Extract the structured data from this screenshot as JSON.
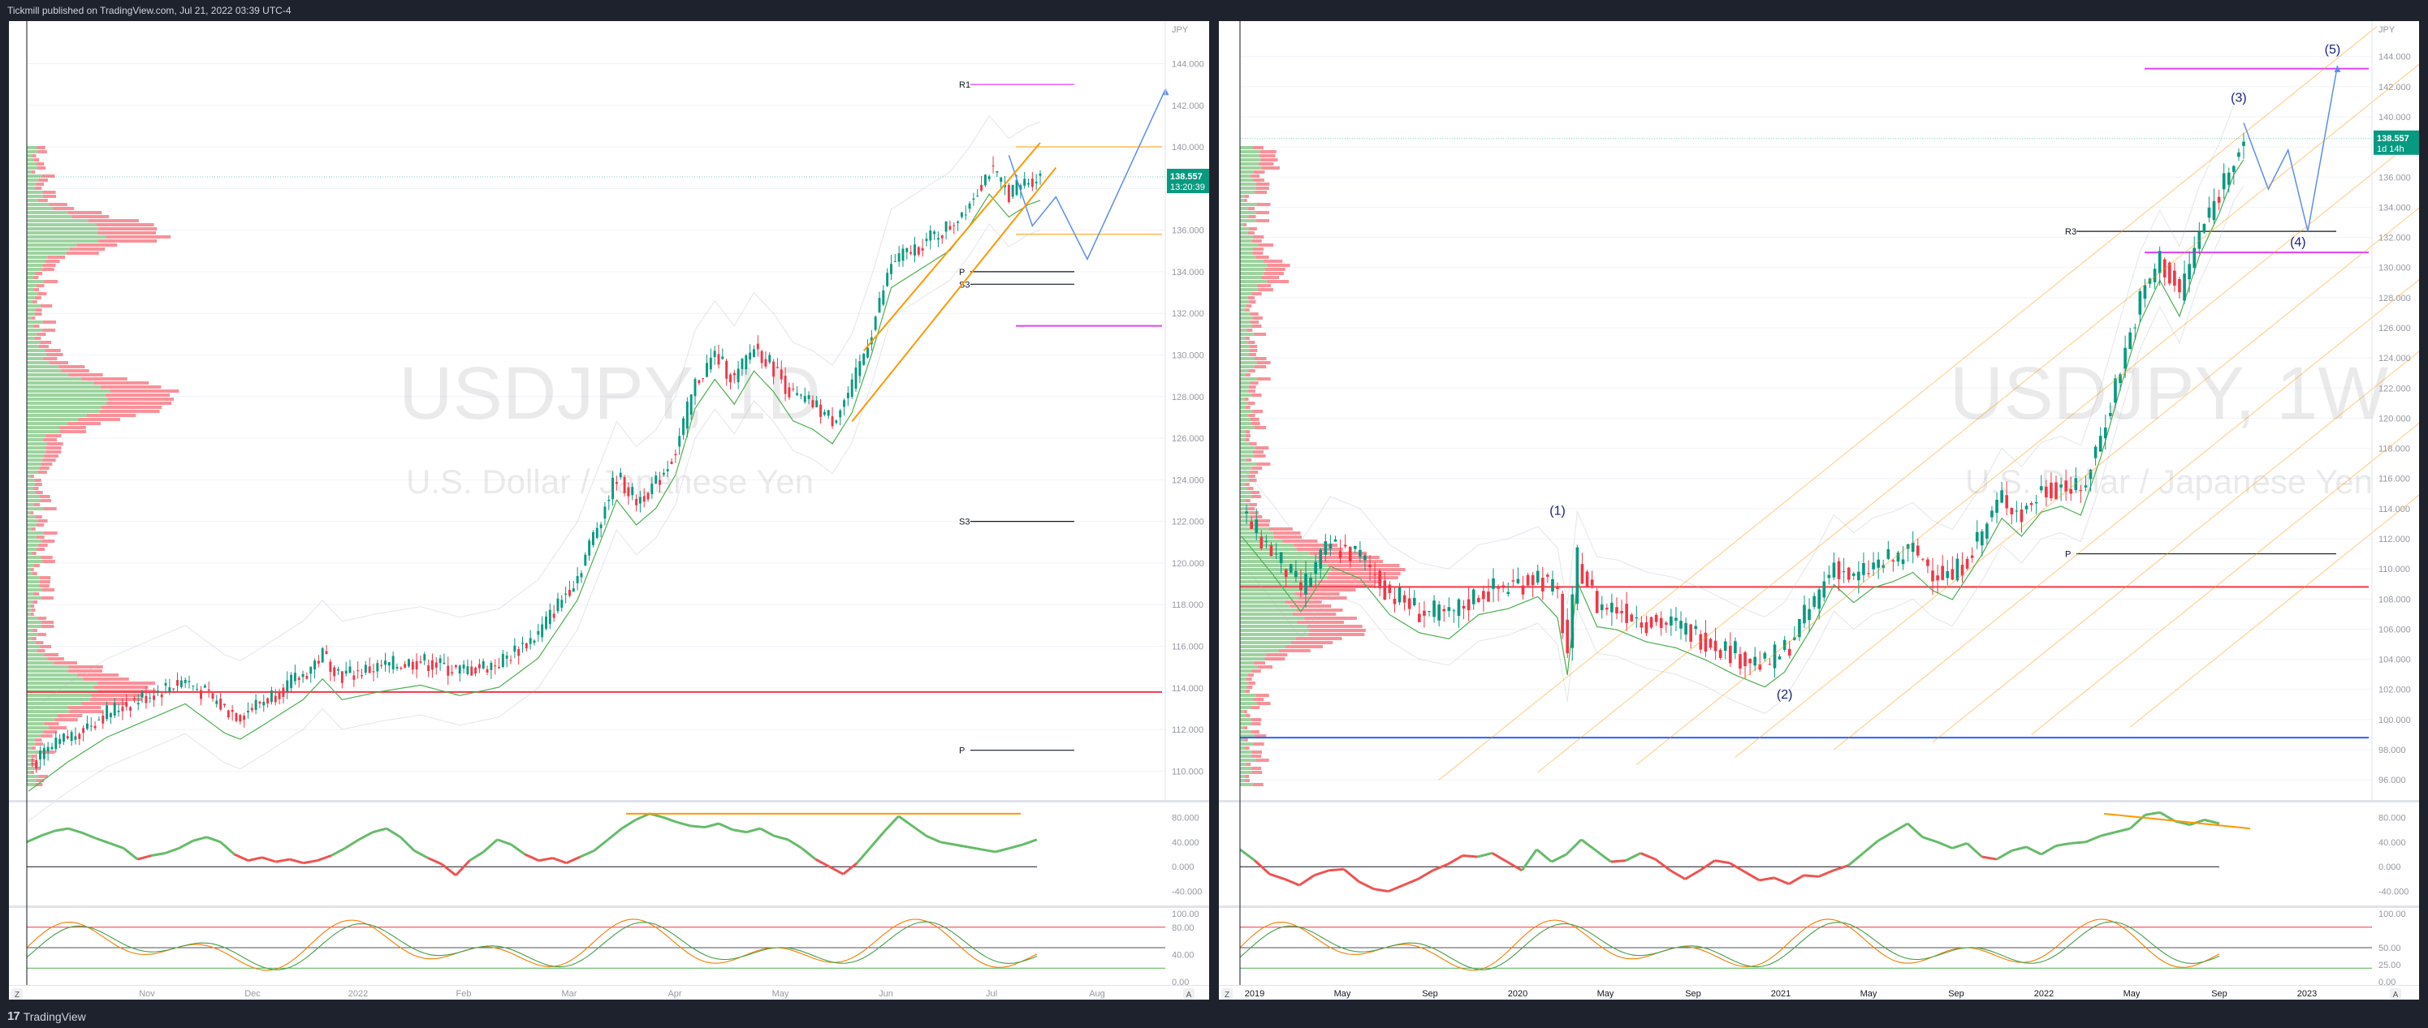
{
  "header": {
    "published": "Tickmill published on TradingView.com, Jul 21, 2022 03:39 UTC-4"
  },
  "footer": {
    "brand": "TradingView",
    "logo": "17"
  },
  "colors": {
    "up": "#089981",
    "down": "#f23645",
    "orange": "#ff9800",
    "magenta": "#e040fb",
    "blue": "#2962ff",
    "rsi": "#66bb6a",
    "rsi_down": "#ef5350"
  },
  "controls": {
    "z": "Z",
    "a": "A"
  },
  "chart_data": [
    {
      "type": "candlestick",
      "title": "USDJPY, 1D",
      "subtitle": "U.S. Dollar / Japanese Yen",
      "currency": "JPY",
      "yticks": [
        144,
        142,
        140,
        138,
        136,
        134,
        132,
        130,
        128,
        126,
        124,
        122,
        120,
        118,
        116,
        114,
        112,
        110
      ],
      "ylim": [
        109.0,
        145.5
      ],
      "xlabels": [
        "Nov",
        "Dec",
        "2022",
        "Feb",
        "Mar",
        "Apr",
        "May",
        "Jun",
        "Jul",
        "Aug"
      ],
      "price_label": {
        "value": "138.557",
        "time": "13:20:39"
      },
      "close_path": [
        [
          0,
          110.2
        ],
        [
          10,
          111.6
        ],
        [
          20,
          112.8
        ],
        [
          30,
          113.6
        ],
        [
          40,
          114.4
        ],
        [
          50,
          113.0
        ],
        [
          54,
          112.7
        ],
        [
          60,
          113.4
        ],
        [
          70,
          114.6
        ],
        [
          75,
          115.6
        ],
        [
          80,
          114.6
        ],
        [
          90,
          115.0
        ],
        [
          100,
          115.3
        ],
        [
          110,
          114.8
        ],
        [
          120,
          115.2
        ],
        [
          130,
          116.6
        ],
        [
          140,
          119.4
        ],
        [
          145,
          121.8
        ],
        [
          150,
          124.2
        ],
        [
          155,
          123.0
        ],
        [
          160,
          123.8
        ],
        [
          165,
          125.4
        ],
        [
          170,
          128.6
        ],
        [
          175,
          130.0
        ],
        [
          180,
          128.8
        ],
        [
          185,
          130.4
        ],
        [
          190,
          129.4
        ],
        [
          195,
          128.0
        ],
        [
          200,
          127.6
        ],
        [
          205,
          126.9
        ],
        [
          210,
          128.4
        ],
        [
          215,
          131.2
        ],
        [
          220,
          134.4
        ],
        [
          225,
          135.0
        ],
        [
          230,
          135.6
        ],
        [
          235,
          136.2
        ],
        [
          240,
          137.4
        ],
        [
          245,
          138.9
        ],
        [
          250,
          137.8
        ],
        [
          255,
          138.4
        ],
        [
          258,
          138.6
        ]
      ],
      "levels": [
        {
          "label": "R1",
          "value": 143.0,
          "color": "#e040fb"
        },
        {
          "label": "P",
          "value": 134.0,
          "color": "#131722"
        },
        {
          "label": "S3",
          "value": 133.4,
          "color": "#131722"
        },
        {
          "label": "S3",
          "value": 122.0,
          "color": "#131722"
        },
        {
          "label": "P",
          "value": 111.0,
          "color": "#131722"
        }
      ],
      "hlines": [
        {
          "value": 113.8,
          "color": "#f23645"
        },
        {
          "value": 140.0,
          "color": "#ff9800"
        },
        {
          "value": 135.8,
          "color": "#ff9800"
        },
        {
          "value": 131.4,
          "color": "#e040fb"
        }
      ],
      "projection": [
        [
          250,
          139.6
        ],
        [
          256,
          136.2
        ],
        [
          262,
          137.6
        ],
        [
          270,
          134.6
        ],
        [
          290,
          142.8
        ]
      ],
      "rsi": {
        "yticks": [
          "80.000",
          "40.000",
          "0.000",
          "-40.000"
        ],
        "values": [
          40,
          50,
          58,
          62,
          55,
          46,
          38,
          30,
          12,
          18,
          22,
          30,
          42,
          48,
          40,
          20,
          10,
          15,
          8,
          12,
          6,
          10,
          18,
          30,
          44,
          56,
          62,
          48,
          26,
          14,
          4,
          -14,
          10,
          24,
          44,
          36,
          20,
          10,
          14,
          6,
          16,
          26,
          44,
          62,
          76,
          86,
          80,
          72,
          66,
          64,
          70,
          60,
          56,
          62,
          50,
          44,
          30,
          12,
          0,
          -12,
          6,
          32,
          58,
          82,
          66,
          50,
          40,
          36,
          32,
          28,
          24,
          30,
          36,
          44
        ]
      },
      "stoch": {
        "yticks": [
          "100.00",
          "80.00",
          "40.00",
          "0.00"
        ]
      }
    },
    {
      "type": "candlestick",
      "title": "USDJPY, 1W",
      "subtitle": "U.S. Dollar / Japanese Yen",
      "currency": "JPY",
      "yticks": [
        144,
        142,
        140,
        138,
        136,
        134,
        132,
        130,
        128,
        126,
        124,
        122,
        120,
        118,
        116,
        114,
        112,
        110,
        108,
        106,
        104,
        102,
        100,
        98,
        96
      ],
      "ylim": [
        95.2,
        145.6
      ],
      "xlabels": [
        "2019",
        "May",
        "Sep",
        "2020",
        "May",
        "Sep",
        "2021",
        "May",
        "Sep",
        "2022",
        "May",
        "Sep",
        "2023"
      ],
      "price_label": {
        "value": "138.557",
        "time": "1d 14h"
      },
      "close_path": [
        [
          0,
          113.6
        ],
        [
          6,
          111.2
        ],
        [
          12,
          108.6
        ],
        [
          18,
          111.6
        ],
        [
          24,
          110.8
        ],
        [
          30,
          108.4
        ],
        [
          36,
          107.2
        ],
        [
          42,
          106.8
        ],
        [
          48,
          108.4
        ],
        [
          54,
          108.8
        ],
        [
          60,
          109.6
        ],
        [
          64,
          108.2
        ],
        [
          66,
          104.4
        ],
        [
          68,
          110.6
        ],
        [
          72,
          107.6
        ],
        [
          76,
          107.4
        ],
        [
          82,
          106.6
        ],
        [
          88,
          106.2
        ],
        [
          94,
          105.4
        ],
        [
          100,
          104.4
        ],
        [
          106,
          103.6
        ],
        [
          110,
          104.6
        ],
        [
          116,
          107.8
        ],
        [
          120,
          110.4
        ],
        [
          124,
          109.2
        ],
        [
          128,
          110.2
        ],
        [
          132,
          110.6
        ],
        [
          136,
          111.2
        ],
        [
          140,
          110.0
        ],
        [
          144,
          109.4
        ],
        [
          150,
          112.4
        ],
        [
          154,
          114.8
        ],
        [
          158,
          113.6
        ],
        [
          162,
          115.2
        ],
        [
          166,
          115.6
        ],
        [
          170,
          115.0
        ],
        [
          174,
          118.8
        ],
        [
          178,
          123.4
        ],
        [
          182,
          127.8
        ],
        [
          186,
          130.6
        ],
        [
          190,
          128.2
        ],
        [
          194,
          132.2
        ],
        [
          198,
          135.0
        ],
        [
          201,
          137.6
        ],
        [
          203,
          138.6
        ]
      ],
      "levels": [
        {
          "label": "R3",
          "value": 132.4,
          "color": "#131722"
        },
        {
          "label": "P",
          "value": 111.0,
          "color": "#131722"
        }
      ],
      "hlines": [
        {
          "value": 108.8,
          "color": "#f23645"
        },
        {
          "value": 98.8,
          "color": "#2962ff"
        },
        {
          "value": 143.2,
          "color": "#e040fb"
        },
        {
          "value": 131.0,
          "color": "#e040fb"
        }
      ],
      "waves": [
        {
          "label": "(1)",
          "x": 64,
          "value": 113.6
        },
        {
          "label": "(2)",
          "x": 110,
          "value": 101.4
        },
        {
          "label": "(3)",
          "x": 202,
          "value": 141.0
        },
        {
          "label": "(4)",
          "x": 214,
          "value": 131.4
        },
        {
          "label": "(5)",
          "x": 221,
          "value": 144.2
        }
      ],
      "projection": [
        [
          203,
          139.6
        ],
        [
          208,
          135.2
        ],
        [
          212,
          137.8
        ],
        [
          216,
          132.4
        ],
        [
          222,
          143.4
        ]
      ],
      "rsi": {
        "yticks": [
          "80.000",
          "40.000",
          "0.000",
          "-40.000"
        ],
        "values": [
          28,
          10,
          -12,
          -20,
          -30,
          -14,
          -6,
          -4,
          -24,
          -36,
          -40,
          -30,
          -20,
          -6,
          4,
          18,
          16,
          22,
          8,
          -6,
          28,
          8,
          20,
          44,
          26,
          8,
          10,
          22,
          12,
          -6,
          -20,
          -6,
          10,
          6,
          -8,
          -22,
          -18,
          -28,
          -14,
          -16,
          -6,
          2,
          22,
          42,
          56,
          70,
          48,
          40,
          30,
          38,
          16,
          12,
          26,
          32,
          20,
          34,
          38,
          40,
          50,
          56,
          62,
          84,
          88,
          74,
          68,
          76,
          70
        ]
      },
      "stoch": {
        "yticks": [
          "100.00",
          "50.00",
          "25.00",
          "0.00"
        ]
      }
    }
  ]
}
